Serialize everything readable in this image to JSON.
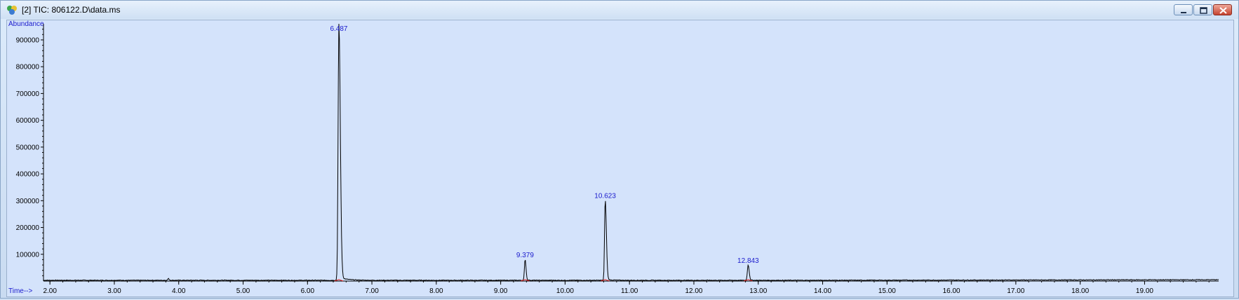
{
  "window": {
    "title": "[2] TIC: 806122.D\\data.ms",
    "icon": "chromatogram-app-icon",
    "controls": [
      "minimize",
      "restore",
      "close"
    ]
  },
  "colors": {
    "trace": "#000000",
    "label": "#1a1acc",
    "baseline_marker": "#e02020",
    "plot_bg": "#d4e3fb"
  },
  "chart_data": {
    "type": "line",
    "title": "",
    "ylabel": "Abundance",
    "xlabel": "Time-->",
    "xlim": [
      1.9,
      20.15
    ],
    "ylim": [
      0,
      960000
    ],
    "x_ticks": [
      "2.00",
      "3.00",
      "4.00",
      "5.00",
      "6.00",
      "7.00",
      "8.00",
      "9.00",
      "10.00",
      "11.00",
      "12.00",
      "13.00",
      "14.00",
      "15.00",
      "16.00",
      "17.00",
      "18.00",
      "19.00"
    ],
    "y_ticks": [
      "100000",
      "200000",
      "300000",
      "400000",
      "500000",
      "600000",
      "700000",
      "800000",
      "900000"
    ],
    "baseline": 3000,
    "peaks": [
      {
        "label": "6.487",
        "rt": 6.487,
        "height": 960000
      },
      {
        "label": "9.379",
        "rt": 9.379,
        "height": 78000
      },
      {
        "label": "10.623",
        "rt": 10.623,
        "height": 300000
      },
      {
        "label": "12.843",
        "rt": 12.843,
        "height": 57000
      }
    ]
  }
}
